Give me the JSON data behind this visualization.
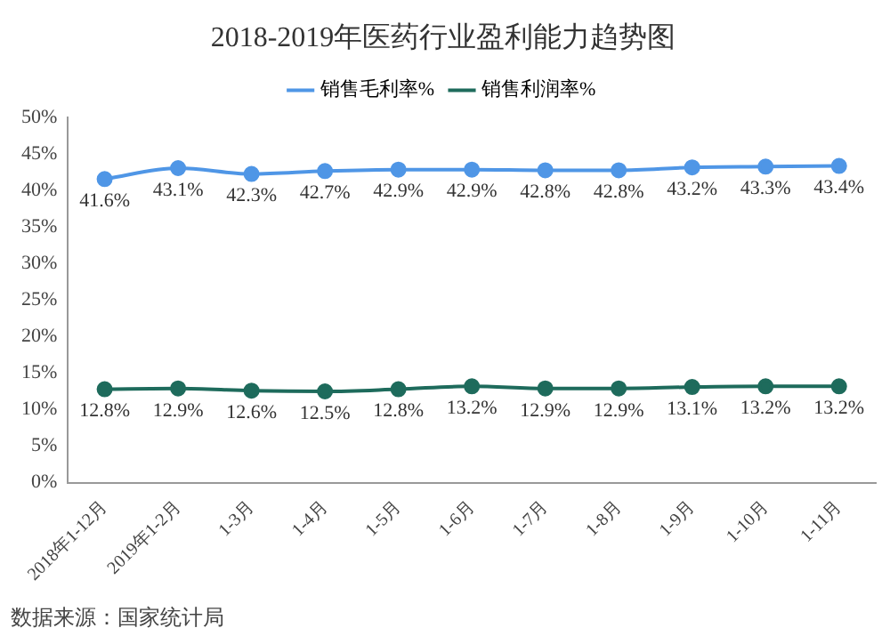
{
  "chart_data": {
    "type": "line",
    "title": "2018-2019年医药行业盈利能力趋势图",
    "categories": [
      "2018年1-12月",
      "2019年1-2月",
      "1-3月",
      "1-4月",
      "1-5月",
      "1-6月",
      "1-7月",
      "1-8月",
      "1-9月",
      "1-10月",
      "1-11月"
    ],
    "series": [
      {
        "name": "销售毛利率%",
        "color": "#4f96e6",
        "values": [
          41.6,
          43.1,
          42.3,
          42.7,
          42.9,
          42.9,
          42.8,
          42.8,
          43.2,
          43.3,
          43.4
        ],
        "value_labels": [
          "41.6%",
          "43.1%",
          "42.3%",
          "42.7%",
          "42.9%",
          "42.9%",
          "42.8%",
          "42.8%",
          "43.2%",
          "43.3%",
          "43.4%"
        ]
      },
      {
        "name": "销售利润率%",
        "color": "#1e6b5c",
        "values": [
          12.8,
          12.9,
          12.6,
          12.5,
          12.8,
          13.2,
          12.9,
          12.9,
          13.1,
          13.2,
          13.2
        ],
        "value_labels": [
          "12.8%",
          "12.9%",
          "12.6%",
          "12.5%",
          "12.8%",
          "13.2%",
          "12.9%",
          "12.9%",
          "13.1%",
          "13.2%",
          "13.2%"
        ]
      }
    ],
    "ylim": [
      0,
      50
    ],
    "yticks": [
      {
        "value": 0,
        "label": "0%"
      },
      {
        "value": 5,
        "label": "5%"
      },
      {
        "value": 10,
        "label": "10%"
      },
      {
        "value": 15,
        "label": "15%"
      },
      {
        "value": 20,
        "label": "20%"
      },
      {
        "value": 25,
        "label": "25%"
      },
      {
        "value": 30,
        "label": "30%"
      },
      {
        "value": 35,
        "label": "35%"
      },
      {
        "value": 40,
        "label": "40%"
      },
      {
        "value": 45,
        "label": "45%"
      },
      {
        "value": 50,
        "label": "50%"
      }
    ],
    "grid": false,
    "legend": "top",
    "marker": "circle",
    "line_style": "solid",
    "annotations": [
      "数据来源：国家统计局"
    ]
  }
}
